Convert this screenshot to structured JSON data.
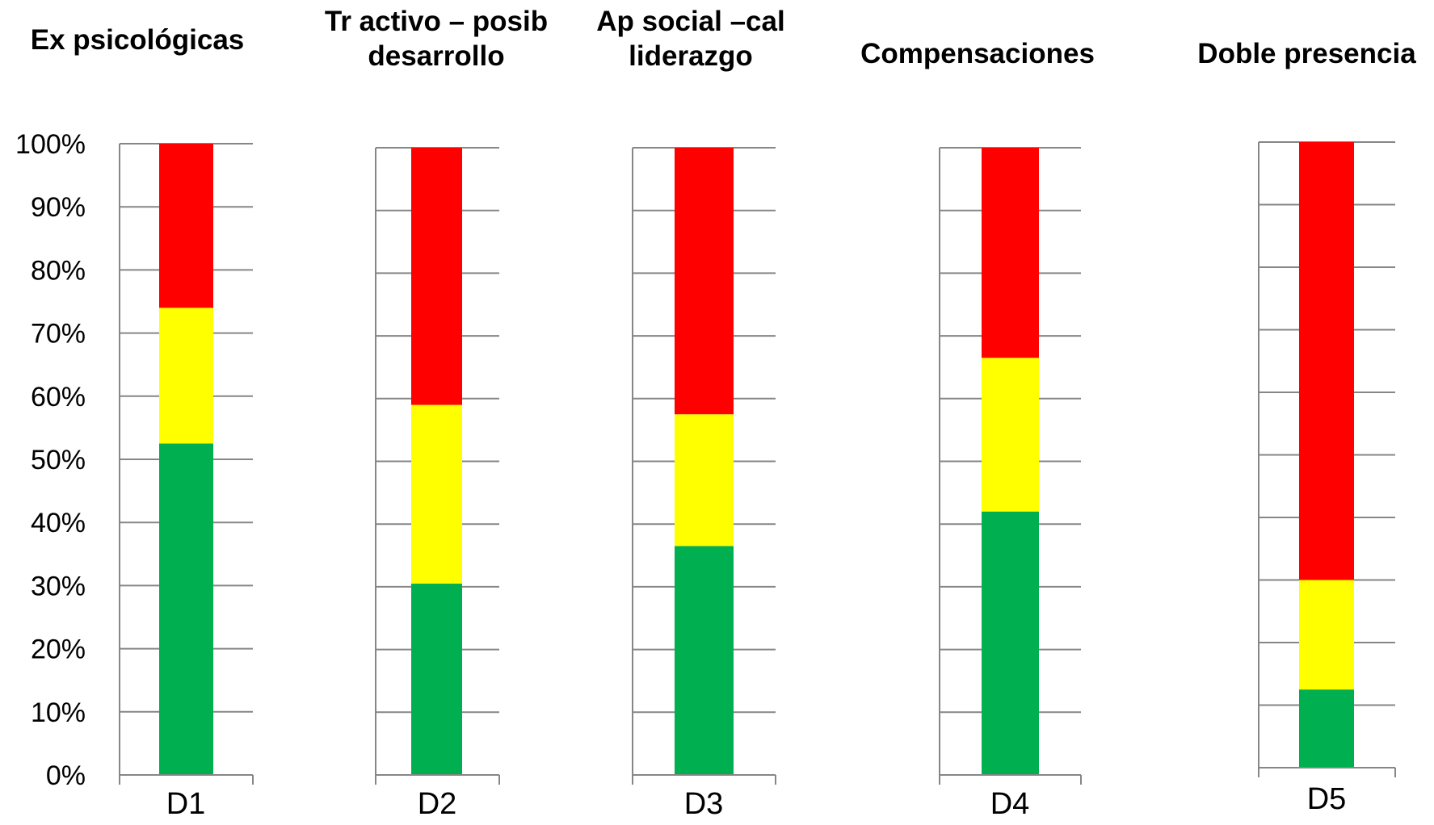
{
  "chart_data": [
    {
      "type": "bar",
      "title": "Ex psicológicas",
      "categories": [
        "D1"
      ],
      "series": [
        {
          "values": [
            52.5
          ],
          "color": "#00B050"
        },
        {
          "values": [
            21.5
          ],
          "color": "#FFFF00"
        },
        {
          "values": [
            26.0
          ],
          "color": "#FF0000"
        }
      ],
      "ylim": [
        0,
        100
      ],
      "yticks": [
        "0%",
        "10%",
        "20%",
        "30%",
        "40%",
        "50%",
        "60%",
        "70%",
        "80%",
        "90%",
        "100%"
      ],
      "grid": true
    },
    {
      "type": "bar",
      "title": "Tr activo – posib\ndesarrollo",
      "categories": [
        "D2"
      ],
      "series": [
        {
          "values": [
            30.5
          ],
          "color": "#00B050"
        },
        {
          "values": [
            28.5
          ],
          "color": "#FFFF00"
        },
        {
          "values": [
            41.0
          ],
          "color": "#FF0000"
        }
      ],
      "ylim": [
        0,
        100
      ],
      "grid": true
    },
    {
      "type": "bar",
      "title": "Ap social –cal\nliderazgo",
      "categories": [
        "D3"
      ],
      "series": [
        {
          "values": [
            36.5
          ],
          "color": "#00B050"
        },
        {
          "values": [
            21.0
          ],
          "color": "#FFFF00"
        },
        {
          "values": [
            42.5
          ],
          "color": "#FF0000"
        }
      ],
      "ylim": [
        0,
        100
      ],
      "grid": true
    },
    {
      "type": "bar",
      "title": "Compensaciones",
      "categories": [
        "D4"
      ],
      "series": [
        {
          "values": [
            42.0
          ],
          "color": "#00B050"
        },
        {
          "values": [
            24.5
          ],
          "color": "#FFFF00"
        },
        {
          "values": [
            33.5
          ],
          "color": "#FF0000"
        }
      ],
      "ylim": [
        0,
        100
      ],
      "grid": true
    },
    {
      "type": "bar",
      "title": "Doble presencia",
      "categories": [
        "D5"
      ],
      "series": [
        {
          "values": [
            12.5
          ],
          "color": "#00B050"
        },
        {
          "values": [
            17.5
          ],
          "color": "#FFFF00"
        },
        {
          "values": [
            70.0
          ],
          "color": "#FF0000"
        }
      ],
      "ylim": [
        0,
        100
      ],
      "grid": true
    }
  ]
}
